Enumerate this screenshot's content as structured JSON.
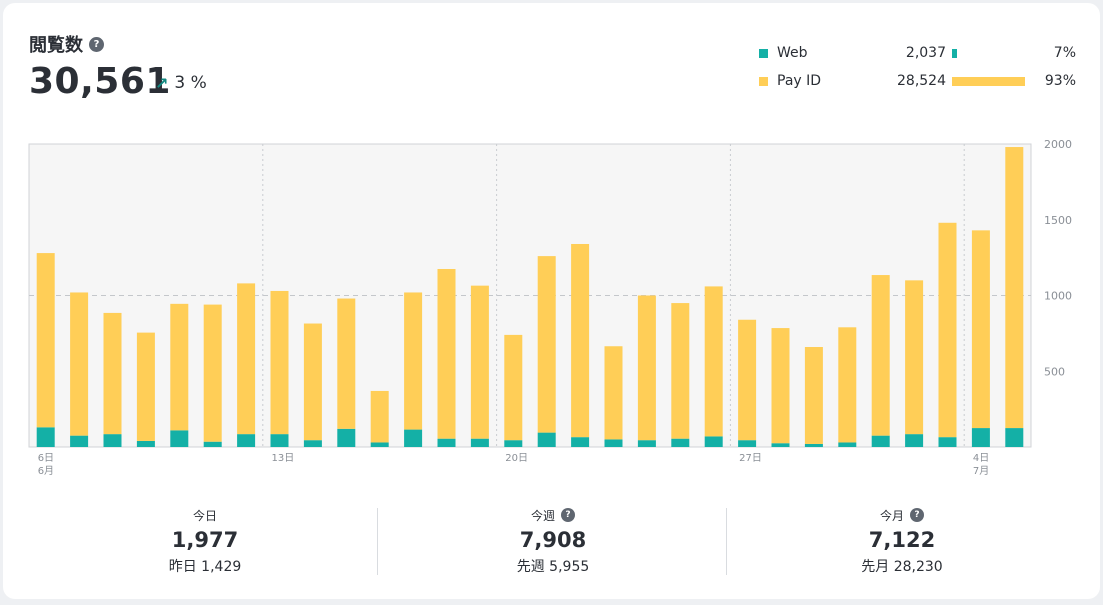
{
  "header": {
    "title": "閲覧数",
    "help_glyph": "?",
    "total": "30,561",
    "trend_icon": "arrow-up-right-icon",
    "trend_pct": "3 %"
  },
  "legend": [
    {
      "label": "Web",
      "value": "2,037",
      "pct": "7%",
      "share": 0.07,
      "color": "#14b0a6"
    },
    {
      "label": "Pay ID",
      "value": "28,524",
      "pct": "93%",
      "share": 0.93,
      "color": "#ffce57"
    }
  ],
  "chart_data": {
    "type": "bar",
    "stacked": true,
    "y_ticks": [
      "500",
      "1000",
      "1500",
      "2000"
    ],
    "ylim": [
      0,
      2000
    ],
    "x_tick_labels": [
      {
        "index": 0,
        "day": "6日",
        "month": "6月"
      },
      {
        "index": 7,
        "day": "13日",
        "month": ""
      },
      {
        "index": 14,
        "day": "20日",
        "month": ""
      },
      {
        "index": 21,
        "day": "27日",
        "month": ""
      },
      {
        "index": 28,
        "day": "4日",
        "month": "7月"
      }
    ],
    "categories": [
      "6/6",
      "6/7",
      "6/8",
      "6/9",
      "6/10",
      "6/11",
      "6/12",
      "6/13",
      "6/14",
      "6/15",
      "6/16",
      "6/17",
      "6/18",
      "6/19",
      "6/20",
      "6/21",
      "6/22",
      "6/23",
      "6/24",
      "6/25",
      "6/26",
      "6/27",
      "6/28",
      "6/29",
      "6/30",
      "7/1",
      "7/2",
      "7/3",
      "7/4",
      "7/5"
    ],
    "series": [
      {
        "name": "Web",
        "color": "#14b0a6",
        "values": [
          130,
          75,
          85,
          40,
          110,
          35,
          85,
          85,
          45,
          120,
          30,
          115,
          55,
          55,
          45,
          95,
          65,
          50,
          45,
          55,
          70,
          45,
          25,
          20,
          30,
          75,
          85,
          65,
          125,
          125
        ]
      },
      {
        "name": "Pay ID",
        "color": "#ffce57",
        "values": [
          1150,
          945,
          800,
          715,
          835,
          905,
          995,
          945,
          770,
          860,
          340,
          905,
          1120,
          1010,
          695,
          1165,
          1275,
          615,
          955,
          895,
          990,
          795,
          760,
          640,
          760,
          1060,
          1015,
          1415,
          1305,
          1855
        ]
      }
    ]
  },
  "stats": [
    {
      "label": "今日",
      "help": false,
      "value": "1,977",
      "previous": "昨日 1,429"
    },
    {
      "label": "今週",
      "help": true,
      "value": "7,908",
      "previous": "先週 5,955"
    },
    {
      "label": "今月",
      "help": true,
      "value": "7,122",
      "previous": "先月 28,230"
    }
  ]
}
